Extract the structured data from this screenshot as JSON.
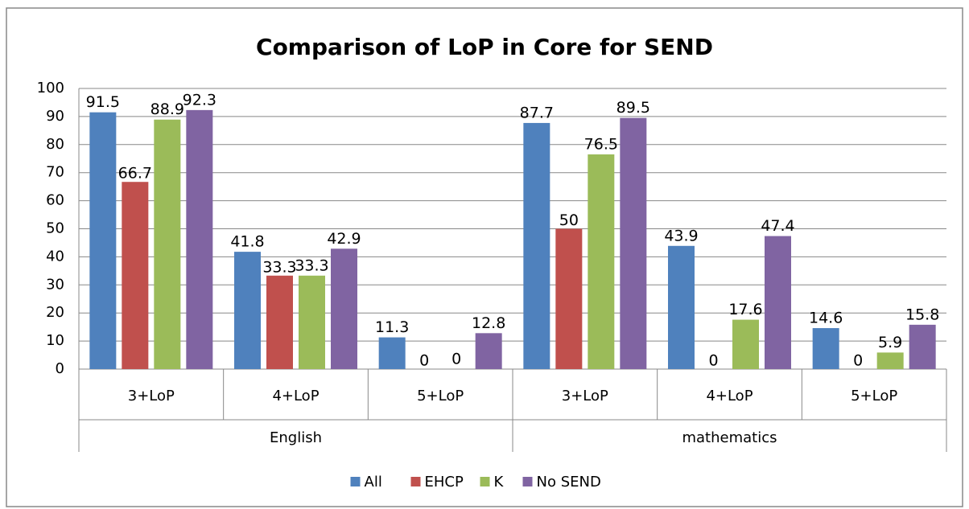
{
  "chart_data": {
    "type": "bar",
    "title": "Comparison of LoP in Core for SEND",
    "groups": [
      {
        "label": "English",
        "categories": [
          "3+LoP",
          "4+LoP",
          "5+LoP"
        ]
      },
      {
        "label": "mathematics",
        "categories": [
          "3+LoP",
          "4+LoP",
          "5+LoP"
        ]
      }
    ],
    "series": [
      {
        "name": "All",
        "color": "#4f81bd",
        "values": [
          91.5,
          41.8,
          11.3,
          87.7,
          43.9,
          14.6
        ]
      },
      {
        "name": "EHCP",
        "color": "#c0504d",
        "values": [
          66.7,
          33.3,
          0,
          50,
          0,
          0
        ]
      },
      {
        "name": "K",
        "color": "#9bbb59",
        "values": [
          88.9,
          33.3,
          0,
          76.5,
          17.6,
          5.9
        ]
      },
      {
        "name": "No SEND",
        "color": "#8064a2",
        "values": [
          92.3,
          42.9,
          12.8,
          89.5,
          47.4,
          15.8
        ]
      }
    ],
    "ylim": [
      0,
      100
    ],
    "yticks": [
      0,
      10,
      20,
      30,
      40,
      50,
      60,
      70,
      80,
      90,
      100
    ],
    "grid": true,
    "legend": "bottom"
  }
}
